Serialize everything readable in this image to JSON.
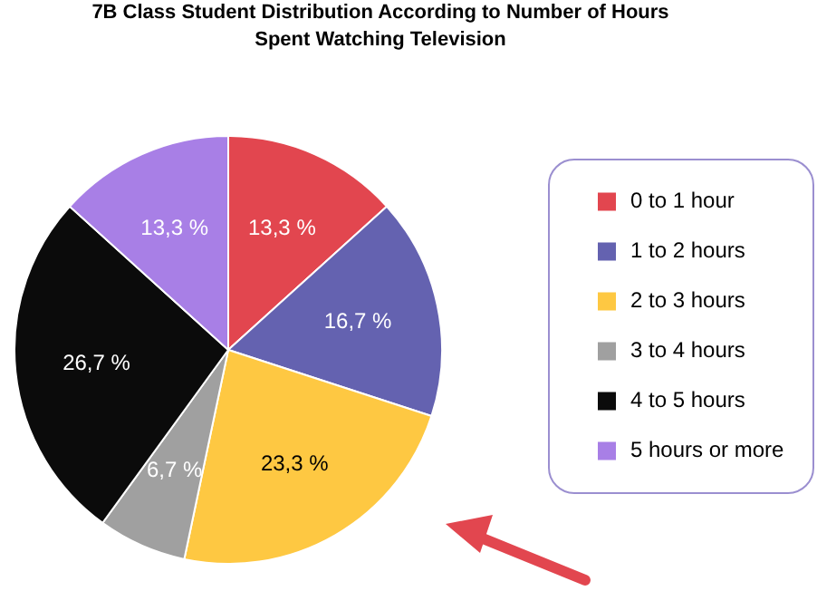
{
  "chart_data": {
    "type": "pie",
    "title": "7B Class Student Distribution According to Number of Hours\nSpent Watching Television",
    "categories": [
      "0 to 1 hour",
      "1 to 2 hours",
      "2 to 3 hours",
      "3 to 4 hours",
      "4 to 5 hours",
      "5 hours or more"
    ],
    "values": [
      13.3,
      16.7,
      23.3,
      6.7,
      26.7,
      13.3
    ],
    "value_labels": [
      "13,3 %",
      "16,7 %",
      "23,3 %",
      "6,7 %",
      "26,7 %",
      "13,3 %"
    ],
    "colors": [
      "#e2464f",
      "#6462b0",
      "#fec842",
      "#a0a0a0",
      "#0b0b0b",
      "#a87fe6"
    ],
    "legend": "right"
  }
}
